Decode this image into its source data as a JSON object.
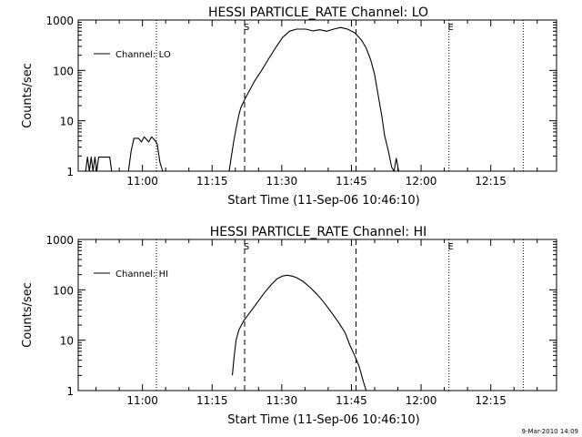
{
  "chart_data": [
    {
      "type": "line",
      "title": "HESSI PARTICLE_RATE Channel: LO",
      "xlabel": "Start Time (11-Sep-06 10:46:10)",
      "ylabel": "Counts/sec",
      "yscale": "log",
      "ylim": [
        1,
        1000
      ],
      "xlim_minutes_from_start": [
        0,
        103
      ],
      "x_ticks": [
        "11:00",
        "11:15",
        "11:30",
        "11:45",
        "12:00",
        "12:15"
      ],
      "y_ticks": [
        "1",
        "10",
        "100",
        "1000"
      ],
      "legend": {
        "position": "top-left",
        "label": "Channel: LO"
      },
      "markers": [
        {
          "label": "S",
          "x": "11:22",
          "style": "dashed"
        },
        {
          "label": "",
          "x": "11:46",
          "style": "dashed"
        },
        {
          "label": "",
          "x": "11:03",
          "style": "dotted"
        },
        {
          "label": "E",
          "x": "12:06",
          "style": "dotted"
        },
        {
          "label": "",
          "x": "12:22",
          "style": "dotted"
        }
      ],
      "series": [
        {
          "name": "Channel: LO",
          "segments": [
            [
              [
                1.6,
                1
              ],
              [
                2.0,
                1.9
              ],
              [
                2.4,
                1
              ],
              [
                2.8,
                1.9
              ],
              [
                3.2,
                1
              ],
              [
                3.6,
                1.9
              ],
              [
                4.0,
                1
              ],
              [
                4.4,
                1.9
              ],
              [
                6.8,
                1.9
              ],
              [
                7.2,
                1
              ]
            ],
            [
              [
                10.8,
                1
              ],
              [
                11.4,
                2.5
              ],
              [
                12.0,
                4.5
              ],
              [
                13.0,
                4.5
              ],
              [
                13.6,
                3.8
              ],
              [
                14.2,
                4.8
              ],
              [
                15.2,
                3.8
              ],
              [
                15.8,
                4.8
              ],
              [
                16.6,
                4.0
              ],
              [
                17.0,
                3.5
              ],
              [
                17.6,
                1.5
              ],
              [
                18.2,
                1
              ]
            ],
            [
              [
                32.5,
                1
              ],
              [
                33.0,
                2
              ],
              [
                33.5,
                4
              ],
              [
                34.0,
                7
              ],
              [
                34.5,
                12
              ],
              [
                35.0,
                18
              ],
              [
                36.0,
                28
              ],
              [
                37.0,
                42
              ],
              [
                38.0,
                62
              ],
              [
                39.5,
                100
              ],
              [
                41.0,
                170
              ],
              [
                42.5,
                280
              ],
              [
                44.0,
                450
              ],
              [
                45.5,
                600
              ],
              [
                47.0,
                660
              ],
              [
                49.0,
                660
              ],
              [
                50.5,
                610
              ],
              [
                52.0,
                640
              ],
              [
                53.5,
                600
              ],
              [
                55.0,
                660
              ],
              [
                56.5,
                710
              ],
              [
                58.0,
                660
              ],
              [
                59.5,
                560
              ],
              [
                61.0,
                400
              ],
              [
                62.0,
                280
              ],
              [
                63.0,
                160
              ],
              [
                63.8,
                85
              ],
              [
                64.6,
                32
              ],
              [
                65.4,
                12
              ],
              [
                66.0,
                5
              ],
              [
                66.8,
                2.5
              ],
              [
                67.5,
                1.2
              ],
              [
                68.0,
                1
              ],
              [
                68.5,
                1.8
              ],
              [
                69.0,
                1
              ]
            ]
          ]
        }
      ]
    },
    {
      "type": "line",
      "title": "HESSI PARTICLE_RATE Channel: HI",
      "xlabel": "Start Time (11-Sep-06 10:46:10)",
      "ylabel": "Counts/sec",
      "yscale": "log",
      "ylim": [
        1,
        1000
      ],
      "xlim_minutes_from_start": [
        0,
        103
      ],
      "x_ticks": [
        "11:00",
        "11:15",
        "11:30",
        "11:45",
        "12:00",
        "12:15"
      ],
      "y_ticks": [
        "1",
        "10",
        "100",
        "1000"
      ],
      "legend": {
        "position": "top-left",
        "label": "Channel: HI"
      },
      "markers": [
        {
          "label": "S",
          "x": "11:22",
          "style": "dashed"
        },
        {
          "label": "",
          "x": "11:46",
          "style": "dashed"
        },
        {
          "label": "",
          "x": "11:03",
          "style": "dotted"
        },
        {
          "label": "E",
          "x": "12:06",
          "style": "dotted"
        },
        {
          "label": "",
          "x": "12:22",
          "style": "dotted"
        }
      ],
      "series": [
        {
          "name": "Channel: HI",
          "segments": [
            [
              [
                33.2,
                2
              ],
              [
                33.6,
                5
              ],
              [
                34.0,
                10
              ],
              [
                34.6,
                16
              ],
              [
                35.6,
                24
              ],
              [
                37.0,
                36
              ],
              [
                38.5,
                55
              ],
              [
                40.0,
                85
              ],
              [
                41.5,
                125
              ],
              [
                42.8,
                165
              ],
              [
                44.0,
                188
              ],
              [
                45.0,
                195
              ],
              [
                46.0,
                188
              ],
              [
                47.0,
                175
              ],
              [
                48.5,
                145
              ],
              [
                50.0,
                110
              ],
              [
                51.5,
                80
              ],
              [
                53.0,
                55
              ],
              [
                54.5,
                36
              ],
              [
                56.0,
                23
              ],
              [
                57.5,
                14
              ],
              [
                58.5,
                8
              ],
              [
                59.5,
                5
              ],
              [
                60.5,
                3
              ],
              [
                61.4,
                1.5
              ],
              [
                62.0,
                1
              ]
            ]
          ]
        }
      ]
    }
  ],
  "footer": {
    "timestamp": "9-Mar-2010 14:09"
  }
}
